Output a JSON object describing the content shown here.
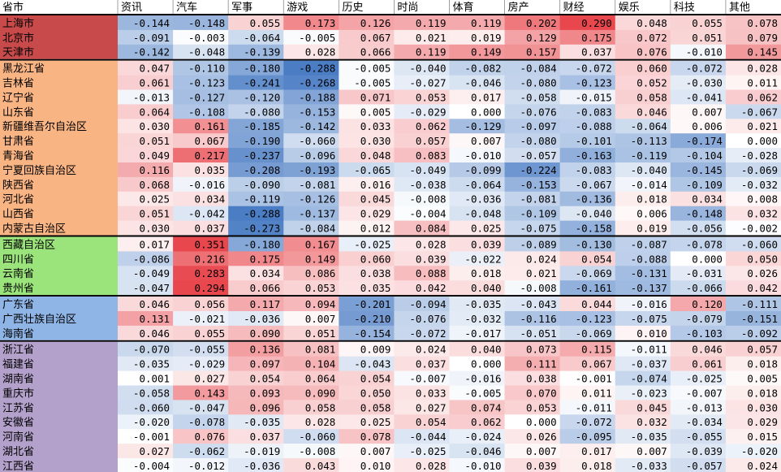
{
  "chart_data": {
    "type": "heatmap",
    "corner_label": "省市",
    "columns": [
      "资讯",
      "汽车",
      "军事",
      "游戏",
      "历史",
      "时尚",
      "体育",
      "房产",
      "财经",
      "娱乐",
      "科技",
      "其他"
    ],
    "color_scale": {
      "min": -0.29,
      "max": 0.29,
      "negative": "#4a7cc4",
      "neutral": "#ffffff",
      "positive": "#e8474d"
    },
    "groups": [
      {
        "name": "group-1",
        "color": "#c84a4a",
        "rows": [
          {
            "province": "上海市",
            "values": [
              -0.144,
              -0.148,
              0.055,
              0.173,
              0.126,
              0.119,
              0.119,
              0.202,
              0.29,
              0.048,
              0.055,
              0.078
            ]
          },
          {
            "province": "北京市",
            "values": [
              -0.091,
              -0.003,
              -0.064,
              -0.005,
              0.067,
              0.021,
              0.019,
              0.129,
              0.175,
              0.072,
              0.051,
              0.079
            ]
          },
          {
            "province": "天津市",
            "values": [
              -0.142,
              -0.048,
              -0.139,
              0.028,
              0.066,
              0.119,
              0.149,
              0.157,
              0.037,
              0.076,
              -0.01,
              0.145
            ]
          }
        ]
      },
      {
        "name": "group-2",
        "color": "#f9b484",
        "rows": [
          {
            "province": "黑龙江省",
            "values": [
              0.047,
              -0.11,
              -0.18,
              -0.288,
              -0.005,
              -0.04,
              -0.082,
              -0.084,
              -0.072,
              0.06,
              -0.072,
              0.028
            ]
          },
          {
            "province": "吉林省",
            "values": [
              0.061,
              -0.123,
              -0.241,
              -0.268,
              -0.005,
              -0.027,
              -0.046,
              -0.08,
              -0.123,
              0.052,
              -0.03,
              0.011
            ]
          },
          {
            "province": "辽宁省",
            "values": [
              -0.013,
              -0.127,
              -0.12,
              -0.188,
              0.071,
              0.053,
              0.017,
              -0.058,
              -0.015,
              0.058,
              -0.041,
              0.062
            ]
          },
          {
            "province": "山东省",
            "values": [
              0.064,
              -0.108,
              -0.08,
              -0.153,
              0.005,
              -0.029,
              0.0,
              -0.076,
              -0.083,
              0.046,
              0.007,
              -0.067
            ]
          },
          {
            "province": "新疆维吾尔自治区",
            "values": [
              0.03,
              0.161,
              -0.185,
              -0.142,
              0.033,
              0.062,
              -0.129,
              -0.097,
              -0.088,
              -0.064,
              0.006,
              0.021
            ]
          },
          {
            "province": "甘肃省",
            "values": [
              0.051,
              0.067,
              -0.19,
              -0.06,
              0.03,
              0.057,
              0.007,
              -0.08,
              -0.101,
              -0.113,
              -0.174,
              0.0
            ]
          },
          {
            "province": "青海省",
            "values": [
              0.049,
              0.217,
              -0.237,
              -0.096,
              0.048,
              0.083,
              -0.01,
              -0.057,
              -0.163,
              -0.119,
              -0.104,
              -0.028
            ]
          },
          {
            "province": "宁夏回族自治区",
            "values": [
              0.116,
              0.035,
              -0.208,
              -0.193,
              -0.065,
              -0.049,
              -0.099,
              -0.224,
              -0.083,
              -0.04,
              -0.145,
              -0.069
            ]
          },
          {
            "province": "陕西省",
            "values": [
              0.068,
              -0.016,
              -0.09,
              -0.081,
              0.016,
              -0.038,
              -0.064,
              -0.153,
              -0.067,
              -0.014,
              -0.109,
              -0.032
            ]
          },
          {
            "province": "河北省",
            "values": [
              0.025,
              0.034,
              -0.119,
              -0.126,
              0.045,
              -0.008,
              -0.036,
              -0.081,
              -0.136,
              0.018,
              0.034,
              0.008
            ]
          },
          {
            "province": "山西省",
            "values": [
              0.051,
              -0.042,
              -0.288,
              -0.137,
              0.029,
              -0.004,
              -0.048,
              -0.109,
              -0.04,
              0.006,
              -0.148,
              0.032
            ]
          },
          {
            "province": "内蒙古自治区",
            "values": [
              0.03,
              0.037,
              -0.273,
              -0.084,
              0.012,
              0.084,
              0.025,
              -0.075,
              -0.158,
              0.019,
              -0.056,
              -0.002
            ]
          }
        ]
      },
      {
        "name": "group-3",
        "color": "#9be37b",
        "rows": [
          {
            "province": "西藏自治区",
            "values": [
              0.017,
              0.351,
              -0.18,
              0.167,
              -0.025,
              0.028,
              0.039,
              -0.089,
              -0.13,
              -0.087,
              -0.078,
              -0.06
            ]
          },
          {
            "province": "四川省",
            "values": [
              -0.086,
              0.216,
              0.175,
              0.149,
              0.06,
              0.039,
              -0.022,
              0.024,
              0.054,
              -0.088,
              0.0,
              0.05
            ]
          },
          {
            "province": "云南省",
            "values": [
              -0.049,
              0.283,
              0.034,
              0.086,
              0.038,
              0.088,
              0.018,
              0.021,
              -0.069,
              -0.131,
              -0.031,
              0.026
            ]
          },
          {
            "province": "贵州省",
            "values": [
              -0.047,
              0.294,
              0.066,
              0.053,
              0.035,
              0.042,
              0.04,
              -0.008,
              -0.161,
              -0.137,
              -0.066,
              0.042
            ]
          }
        ]
      },
      {
        "name": "group-4",
        "color": "#8fb5e6",
        "rows": [
          {
            "province": "广东省",
            "values": [
              0.046,
              0.056,
              0.117,
              0.094,
              -0.201,
              -0.094,
              -0.035,
              -0.043,
              0.044,
              -0.016,
              0.12,
              -0.111
            ]
          },
          {
            "province": "广西壮族自治区",
            "values": [
              0.131,
              -0.021,
              -0.036,
              0.007,
              -0.21,
              -0.076,
              -0.032,
              -0.116,
              -0.123,
              -0.075,
              -0.079,
              -0.151
            ]
          },
          {
            "province": "海南省",
            "values": [
              0.046,
              0.055,
              0.09,
              0.051,
              -0.154,
              -0.072,
              -0.017,
              -0.051,
              -0.069,
              0.01,
              -0.103,
              -0.092
            ]
          }
        ]
      },
      {
        "name": "group-5",
        "color": "#b3a1cb",
        "rows": [
          {
            "province": "浙江省",
            "values": [
              -0.07,
              -0.055,
              0.136,
              0.081,
              0.009,
              0.024,
              0.04,
              0.073,
              0.115,
              -0.011,
              0.046,
              0.057
            ]
          },
          {
            "province": "福建省",
            "values": [
              -0.035,
              -0.029,
              0.097,
              0.104,
              -0.043,
              0.037,
              0.0,
              0.111,
              0.067,
              -0.037,
              0.061,
              0.018
            ]
          },
          {
            "province": "湖南省",
            "values": [
              0.001,
              0.027,
              0.054,
              0.064,
              0.054,
              -0.007,
              -0.016,
              0.038,
              -0.001,
              -0.074,
              -0.025,
              0.005
            ]
          },
          {
            "province": "重庆市",
            "values": [
              -0.058,
              0.143,
              0.093,
              0.09,
              0.05,
              0.033,
              -0.005,
              0.07,
              0.011,
              -0.023,
              -0.007,
              0.018
            ]
          },
          {
            "province": "江苏省",
            "values": [
              -0.06,
              -0.047,
              0.096,
              0.058,
              0.058,
              0.027,
              0.074,
              0.053,
              -0.011,
              0.045,
              -0.013,
              0.03
            ]
          },
          {
            "province": "安徽省",
            "values": [
              -0.02,
              -0.078,
              -0.035,
              0.028,
              0.025,
              0.054,
              0.062,
              0.0,
              -0.072,
              0.032,
              -0.034,
              0.029
            ]
          },
          {
            "province": "河南省",
            "values": [
              -0.001,
              0.076,
              0.037,
              -0.06,
              0.078,
              -0.044,
              -0.024,
              0.026,
              -0.095,
              -0.035,
              -0.055,
              0.015
            ]
          },
          {
            "province": "湖北省",
            "values": [
              0.027,
              -0.062,
              -0.019,
              -0.008,
              0.007,
              -0.025,
              -0.046,
              0.007,
              0.017,
              0.007,
              -0.039,
              -0.02
            ]
          },
          {
            "province": "江西省",
            "values": [
              -0.004,
              -0.012,
              -0.036,
              0.043,
              0.01,
              0.028,
              -0.01,
              0.039,
              0.018,
              -0.033,
              -0.057,
              0.024
            ]
          }
        ]
      }
    ]
  }
}
